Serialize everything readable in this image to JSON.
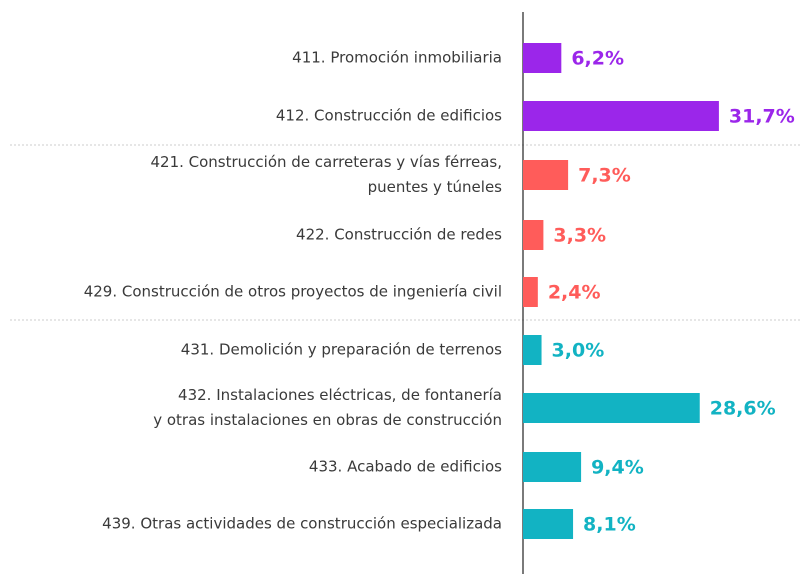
{
  "chart_data": {
    "type": "barh",
    "categories": [
      "411. Promoción inmobiliaria",
      "412. Construcción de edificios",
      "421. Construcción de carreteras y vías férreas,\npuentes y túneles",
      "422. Construcción de redes",
      "429. Construcción de otros proyectos de ingeniería civil",
      "431. Demolición y preparación de terrenos",
      "432. Instalaciones eléctricas, de fontanería\ny otras instalaciones en obras de construcción",
      "433. Acabado de edificios",
      "439. Otras actividades de construcción especializada"
    ],
    "values": [
      6.2,
      31.7,
      7.3,
      3.3,
      2.4,
      3.0,
      28.6,
      9.4,
      8.1
    ],
    "value_labels": [
      "6,2%",
      "31,7%",
      "7,3%",
      "3,3%",
      "2,4%",
      "3,0%",
      "28,6%",
      "9,4%",
      "8,1%"
    ],
    "colors": [
      "#9b26ea",
      "#9b26ea",
      "#ff5c5a",
      "#ff5c5a",
      "#ff5c5a",
      "#12b3c3",
      "#12b3c3",
      "#12b3c3",
      "#12b3c3"
    ]
  }
}
